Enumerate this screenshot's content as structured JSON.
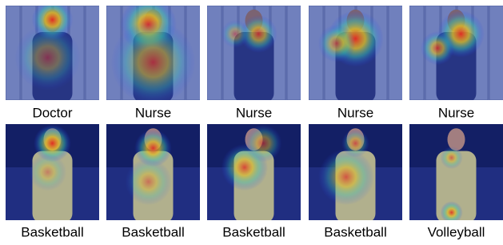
{
  "figure": {
    "rows": [
      [
        "Doctor",
        "Nurse",
        "Nurse",
        "Nurse",
        "Nurse"
      ],
      [
        "Basketball",
        "Basketball",
        "Basketball",
        "Basketball",
        "Volleyball"
      ]
    ]
  }
}
